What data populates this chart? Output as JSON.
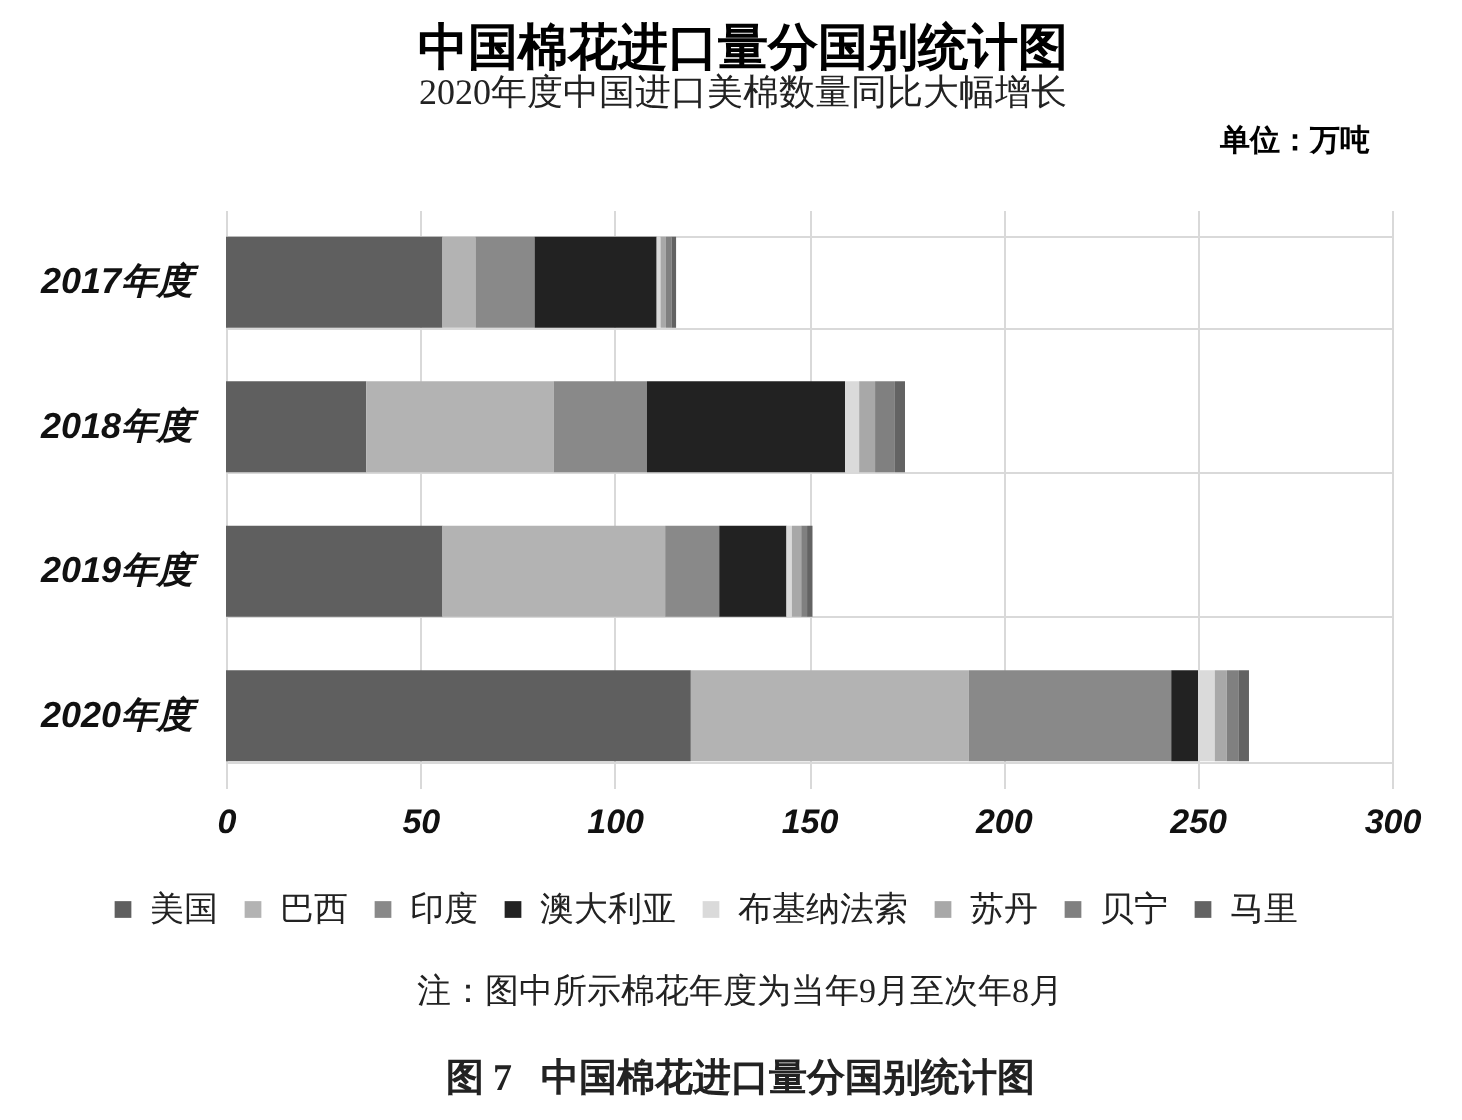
{
  "chart_data": {
    "type": "bar",
    "orientation": "horizontal",
    "stacked": true,
    "title": "中国棉花进口量分国别统计图",
    "subtitle": "2020年度中国进口美棉数量同比大幅增长",
    "annotations": [
      "单位：万吨",
      "注：图中所示棉花年度为当年9月至次年8月",
      "图 7   中国棉花进口量分国别统计图"
    ],
    "categories": [
      "2017年度",
      "2018年度",
      "2019年度",
      "2020年度"
    ],
    "series": [
      {
        "name": "美国",
        "color": "#5f5f5f",
        "values": [
          55.7,
          36.1,
          55.7,
          119.6
        ]
      },
      {
        "name": "巴西",
        "color": "#b3b3b3",
        "values": [
          8.5,
          48.2,
          57.3,
          71.5
        ]
      },
      {
        "name": "印度",
        "color": "#898989",
        "values": [
          15.2,
          24.0,
          13.9,
          52.1
        ]
      },
      {
        "name": "澳大利亚",
        "color": "#222222",
        "values": [
          31.4,
          51.0,
          17.3,
          6.9
        ]
      },
      {
        "name": "布基纳法索",
        "color": "#dadada",
        "values": [
          1.0,
          3.6,
          1.4,
          4.3
        ]
      },
      {
        "name": "苏丹",
        "color": "#a8a8a8",
        "values": [
          1.4,
          4.1,
          2.4,
          3.1
        ]
      },
      {
        "name": "贝宁",
        "color": "#808080",
        "values": [
          1.4,
          5.1,
          1.5,
          3.1
        ]
      },
      {
        "name": "马里",
        "color": "#636363",
        "values": [
          1.2,
          2.6,
          1.4,
          2.6
        ]
      }
    ],
    "xlim": [
      0,
      300
    ],
    "xticks": [
      0,
      50,
      100,
      150,
      200,
      250,
      300
    ],
    "grid": true,
    "legend": "bottom"
  }
}
